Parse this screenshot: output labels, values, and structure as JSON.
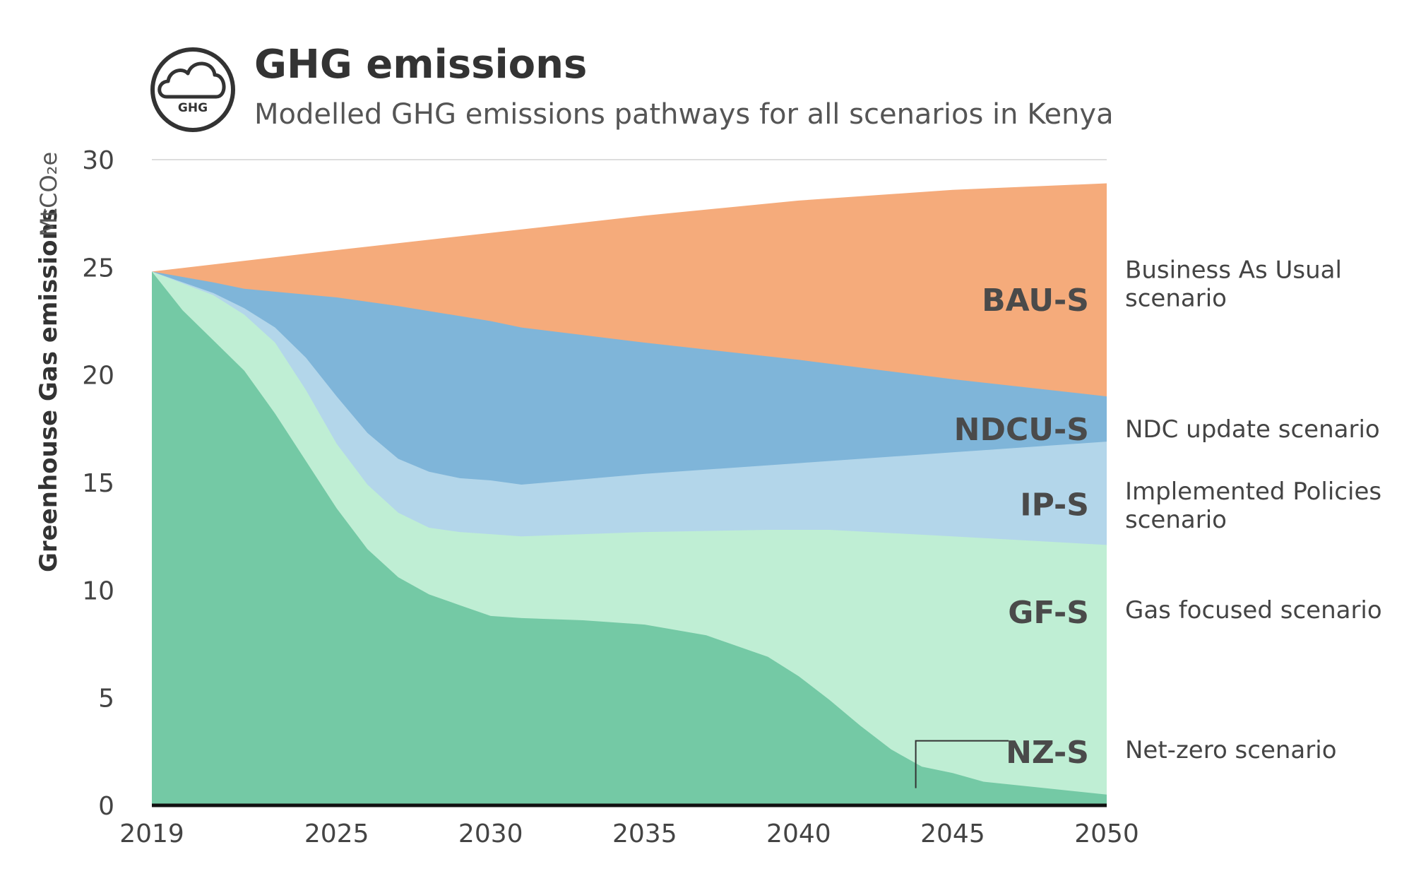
{
  "header": {
    "title": "GHG emissions",
    "subtitle": "Modelled GHG emissions pathways for all scenarios in Kenya",
    "icon": "cloud-icon",
    "icon_label": "GHG"
  },
  "chart_data": {
    "type": "area",
    "title": "GHG emissions",
    "subtitle": "Modelled GHG emissions pathways for all scenarios in Kenya",
    "ylabel": "Greenhouse Gas emissions",
    "yunit": "MtCO₂e",
    "xlabel": "",
    "xlim": [
      2019,
      2050
    ],
    "ylim": [
      0,
      30
    ],
    "x_ticks": [
      2019,
      2025,
      2030,
      2035,
      2040,
      2045,
      2050
    ],
    "y_ticks": [
      0,
      5,
      10,
      15,
      20,
      25,
      30
    ],
    "grid": false,
    "legend": "right",
    "series": [
      {
        "name": "BAU-S",
        "description": "Business As Usual scenario",
        "color": "#f5ab7b",
        "points": [
          [
            2019,
            24.8
          ],
          [
            2025,
            25.8
          ],
          [
            2030,
            26.6
          ],
          [
            2035,
            27.4
          ],
          [
            2040,
            28.1
          ],
          [
            2045,
            28.6
          ],
          [
            2050,
            28.9
          ]
        ]
      },
      {
        "name": "NDCU-S",
        "description": "NDC update scenario",
        "color": "#7fb5d9",
        "points": [
          [
            2019,
            24.8
          ],
          [
            2021,
            24.3
          ],
          [
            2022,
            24.0
          ],
          [
            2025,
            23.6
          ],
          [
            2027,
            23.2
          ],
          [
            2030,
            22.5
          ],
          [
            2031,
            22.2
          ],
          [
            2035,
            21.5
          ],
          [
            2040,
            20.7
          ],
          [
            2045,
            19.8
          ],
          [
            2050,
            19.0
          ]
        ]
      },
      {
        "name": "IP-S",
        "description": "Implemented Policies scenario",
        "color": "#b3d6ea",
        "points": [
          [
            2019,
            24.8
          ],
          [
            2021,
            23.8
          ],
          [
            2022,
            23.1
          ],
          [
            2023,
            22.2
          ],
          [
            2024,
            20.8
          ],
          [
            2025,
            19.0
          ],
          [
            2026,
            17.3
          ],
          [
            2027,
            16.1
          ],
          [
            2028,
            15.5
          ],
          [
            2029,
            15.2
          ],
          [
            2030,
            15.1
          ],
          [
            2031,
            14.9
          ],
          [
            2035,
            15.4
          ],
          [
            2040,
            15.9
          ],
          [
            2045,
            16.4
          ],
          [
            2050,
            16.9
          ]
        ]
      },
      {
        "name": "GF-S",
        "description": "Gas focused scenario",
        "color": "#bfeed4",
        "points": [
          [
            2019,
            24.8
          ],
          [
            2021,
            23.7
          ],
          [
            2022,
            22.8
          ],
          [
            2023,
            21.5
          ],
          [
            2024,
            19.3
          ],
          [
            2025,
            16.8
          ],
          [
            2026,
            14.9
          ],
          [
            2027,
            13.6
          ],
          [
            2028,
            12.9
          ],
          [
            2029,
            12.7
          ],
          [
            2030,
            12.6
          ],
          [
            2031,
            12.5
          ],
          [
            2035,
            12.7
          ],
          [
            2039,
            12.8
          ],
          [
            2041,
            12.8
          ],
          [
            2045,
            12.5
          ],
          [
            2050,
            12.1
          ]
        ]
      },
      {
        "name": "NZ-S",
        "description": "Net-zero scenario",
        "color": "#74c9a5",
        "points": [
          [
            2019,
            24.8
          ],
          [
            2020,
            23.0
          ],
          [
            2021,
            21.6
          ],
          [
            2022,
            20.2
          ],
          [
            2023,
            18.2
          ],
          [
            2024,
            16.0
          ],
          [
            2025,
            13.8
          ],
          [
            2026,
            11.9
          ],
          [
            2027,
            10.6
          ],
          [
            2028,
            9.8
          ],
          [
            2029,
            9.3
          ],
          [
            2030,
            8.8
          ],
          [
            2031,
            8.7
          ],
          [
            2033,
            8.6
          ],
          [
            2035,
            8.4
          ],
          [
            2037,
            7.9
          ],
          [
            2039,
            6.9
          ],
          [
            2040,
            6.0
          ],
          [
            2041,
            4.9
          ],
          [
            2042,
            3.7
          ],
          [
            2043,
            2.6
          ],
          [
            2044,
            1.8
          ],
          [
            2045,
            1.5
          ],
          [
            2046,
            1.1
          ],
          [
            2048,
            0.8
          ],
          [
            2050,
            0.5
          ]
        ]
      }
    ]
  }
}
